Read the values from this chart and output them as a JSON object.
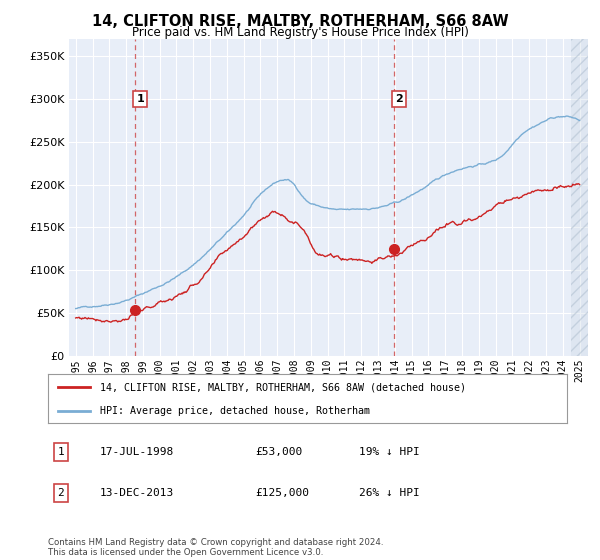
{
  "title": "14, CLIFTON RISE, MALTBY, ROTHERHAM, S66 8AW",
  "subtitle": "Price paid vs. HM Land Registry's House Price Index (HPI)",
  "legend_line1": "14, CLIFTON RISE, MALTBY, ROTHERHAM, S66 8AW (detached house)",
  "legend_line2": "HPI: Average price, detached house, Rotherham",
  "table_row1_date": "17-JUL-1998",
  "table_row1_price": "£53,000",
  "table_row1_hpi": "19% ↓ HPI",
  "table_row2_date": "13-DEC-2013",
  "table_row2_price": "£125,000",
  "table_row2_hpi": "26% ↓ HPI",
  "footer": "Contains HM Land Registry data © Crown copyright and database right 2024.\nThis data is licensed under the Open Government Licence v3.0.",
  "hpi_color": "#7aadd4",
  "price_color": "#cc2222",
  "dashed_line_color": "#cc4444",
  "ylim": [
    0,
    370000
  ],
  "yticks": [
    0,
    50000,
    100000,
    150000,
    200000,
    250000,
    300000,
    350000
  ],
  "point1_x": 1998.54,
  "point1_y": 53000,
  "point2_x": 2013.95,
  "point2_y": 125000,
  "xlim_left": 1994.6,
  "xlim_right": 2025.5,
  "background_color": "#e8eef8",
  "hatch_start": 2024.5
}
